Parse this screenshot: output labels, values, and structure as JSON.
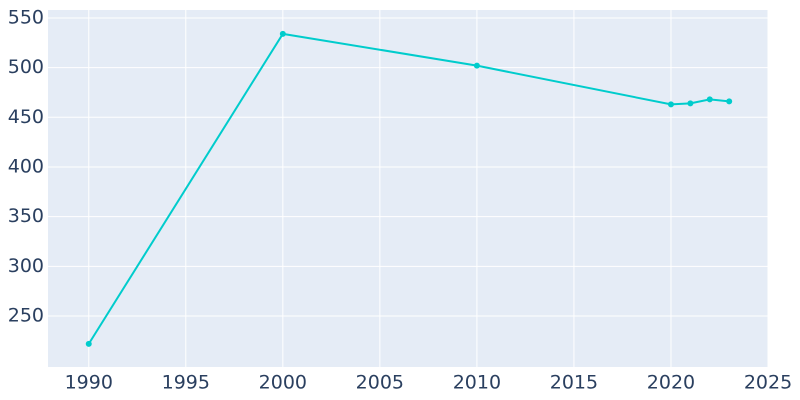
{
  "chart_data": {
    "type": "line",
    "x": [
      1990,
      2000,
      2010,
      2020,
      2021,
      2022,
      2023
    ],
    "series": [
      {
        "color": "#00cccc",
        "values": [
          222,
          534,
          502,
          463,
          464,
          468,
          466
        ]
      }
    ],
    "xlim": [
      1987.9,
      2025
    ],
    "xticks": [
      1990,
      1995,
      2000,
      2005,
      2010,
      2015,
      2020,
      2025
    ],
    "ylim": [
      198.7,
      558
    ],
    "yticks": [
      250,
      300,
      350,
      400,
      450,
      500,
      550
    ],
    "grid": true,
    "background": "#e5ecf6",
    "grid_color": "#ffffff"
  }
}
